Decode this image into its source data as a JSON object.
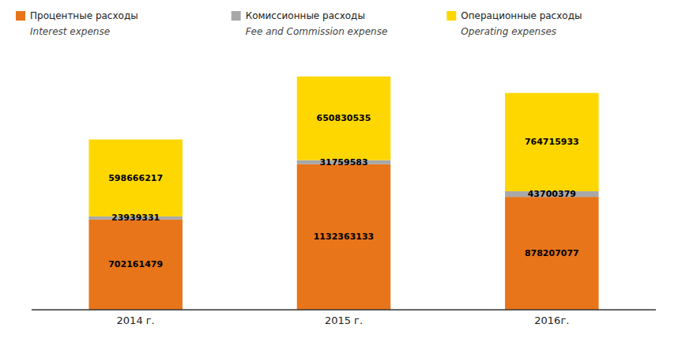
{
  "chart_data": {
    "type": "bar",
    "stacked": true,
    "categories": [
      "2014 г.",
      "2015 г.",
      "2016г."
    ],
    "series": [
      {
        "name": "Процентные расходы",
        "color": "#E8751A",
        "values": [
          702161479,
          1132363133,
          878207077
        ]
      },
      {
        "name": "Комиссионные расходы",
        "color": "#A8A8A8",
        "values": [
          23939331,
          31759583,
          43700379
        ]
      },
      {
        "name": "Операционные расходы",
        "color": "#FFD700",
        "values": [
          598666217,
          650830535,
          764715933
        ]
      }
    ],
    "annotations": [
      "Interest expense",
      "Fee and Commission expense",
      "Operating expenses"
    ],
    "ylim": [
      0,
      1905700913.55
    ],
    "data_labels": true,
    "tick_labels": "x",
    "grid": false,
    "legend": "top"
  }
}
